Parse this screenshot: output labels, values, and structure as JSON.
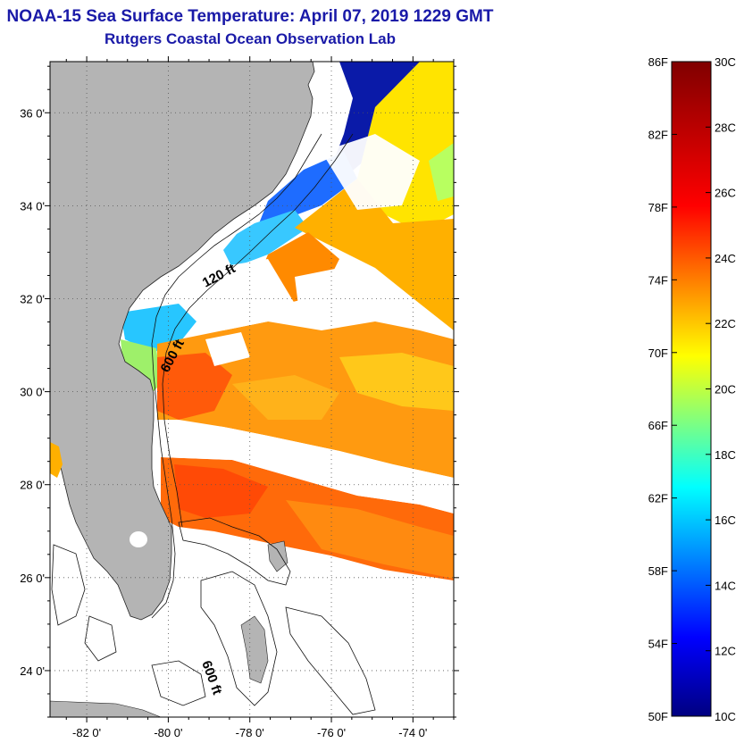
{
  "title": {
    "line1": "NOAA-15 Sea Surface Temperature:  April 07, 2019 1229 GMT",
    "line2": "Rutgers Coastal Ocean Observation Lab"
  },
  "map": {
    "region": "Southeastern US coast and Bahamas",
    "lat_range": [
      23.0,
      37.1
    ],
    "lon_range": [
      -82.9,
      -73.0
    ],
    "lat_ticks": [
      {
        "value": 24,
        "label": "24 0'"
      },
      {
        "value": 26,
        "label": "26 0'"
      },
      {
        "value": 28,
        "label": "28 0'"
      },
      {
        "value": 30,
        "label": "30 0'"
      },
      {
        "value": 32,
        "label": "32 0'"
      },
      {
        "value": 34,
        "label": "34 0'"
      },
      {
        "value": 36,
        "label": "36 0'"
      }
    ],
    "lon_ticks": [
      {
        "value": -82,
        "label": "-82 0'"
      },
      {
        "value": -80,
        "label": "-80 0'"
      },
      {
        "value": -78,
        "label": "-78 0'"
      },
      {
        "value": -76,
        "label": "-76 0'"
      },
      {
        "value": -74,
        "label": "-74 0'"
      }
    ],
    "contour_labels": [
      {
        "text": "120 ft"
      },
      {
        "text": "600 ft"
      },
      {
        "text": "600 ft"
      }
    ],
    "colors": {
      "land": "#b4b4b4",
      "no_data": "#ffffff",
      "grid": "#555555"
    }
  },
  "colorbar": {
    "range_f": [
      50,
      86
    ],
    "range_c": [
      10,
      30
    ],
    "f_labels": [
      "86F",
      "82F",
      "78F",
      "74F",
      "70F",
      "66F",
      "62F",
      "58F",
      "54F",
      "50F"
    ],
    "c_labels": [
      "30C",
      "28C",
      "26C",
      "24C",
      "22C",
      "20C",
      "18C",
      "16C",
      "14C",
      "12C",
      "10C"
    ],
    "gradient_stops": [
      {
        "t": 0.0,
        "color": "#000080"
      },
      {
        "t": 0.12,
        "color": "#0000ff"
      },
      {
        "t": 0.35,
        "color": "#00ffff"
      },
      {
        "t": 0.55,
        "color": "#ffff00"
      },
      {
        "t": 0.78,
        "color": "#ff0000"
      },
      {
        "t": 1.0,
        "color": "#800000"
      }
    ]
  }
}
